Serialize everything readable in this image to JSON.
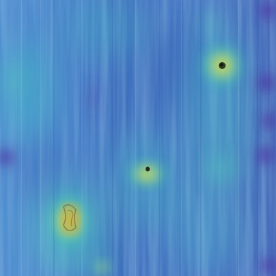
{
  "image": {
    "kind": "anomaly-heatmap-overlay",
    "subject": "wood-grain-surface",
    "colormap": "viridis-like",
    "colors": {
      "background_blue": "#3f6fbd",
      "grain_light": "#6fb3d6",
      "grain_dark": "#2f58a8",
      "low_purple": "#4b2fa0",
      "mid_teal": "#35c7b0",
      "mid_green": "#7fd18a",
      "high_yellow": "#e9d84a",
      "defect_dark": "#3a3320"
    },
    "features": [
      {
        "name": "knot-top-right",
        "level": "high"
      },
      {
        "name": "knot-center",
        "level": "high"
      },
      {
        "name": "knot-bottom-left",
        "level": "high"
      },
      {
        "name": "spot-bottom-center",
        "level": "medium"
      }
    ]
  }
}
